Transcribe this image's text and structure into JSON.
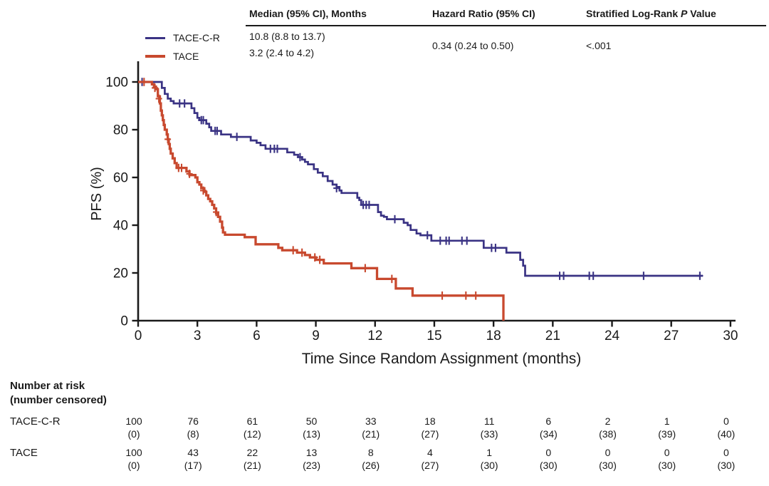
{
  "figure": {
    "stats_header": {
      "median_label": "Median (95% CI), Months",
      "hr_label": "Hazard Ratio (95% CI)",
      "logrank_prefix": "Stratified Log-Rank",
      "logrank_italic": "P",
      "logrank_suffix": "Value",
      "median_tace_c_r": "10.8 (8.8 to 13.7)",
      "median_tace": "3.2 (2.4 to 4.2)",
      "hazard_ratio": "0.34 (0.24 to 0.50)",
      "p_value": "<.001"
    },
    "legend": [
      {
        "label": "TACE-C-R",
        "color": "#3a3384"
      },
      {
        "label": "TACE",
        "color": "#c8492e"
      }
    ],
    "y_axis_label": "PFS (%)",
    "x_axis_label": "Time Since Random Assignment (months)",
    "ink_color": "#1a1a1a"
  },
  "chart_data": {
    "type": "line",
    "subtype": "kaplan-meier-step",
    "xlabel": "Time Since Random Assignment (months)",
    "ylabel": "PFS (%)",
    "xlim": [
      0,
      30
    ],
    "ylim": [
      0,
      100
    ],
    "x_ticks": [
      0,
      3,
      6,
      9,
      12,
      15,
      18,
      21,
      24,
      27,
      30
    ],
    "y_ticks": [
      0,
      20,
      40,
      60,
      80,
      100
    ],
    "grid": false,
    "legend_position": "top-left",
    "hazard_ratio_95ci": "0.34 (0.24 to 0.50)",
    "stratified_logrank_p": "<.001",
    "series": [
      {
        "name": "TACE-C-R",
        "color": "#3a3384",
        "median_95ci_months": "10.8 (8.8 to 13.7)",
        "steps": [
          [
            0,
            100
          ],
          [
            1.1,
            100
          ],
          [
            1.2,
            97.5
          ],
          [
            1.35,
            95
          ],
          [
            1.5,
            93
          ],
          [
            1.65,
            92
          ],
          [
            1.8,
            91
          ],
          [
            2.55,
            91
          ],
          [
            2.7,
            89
          ],
          [
            2.85,
            87
          ],
          [
            3.0,
            85
          ],
          [
            3.1,
            84
          ],
          [
            3.35,
            84
          ],
          [
            3.45,
            82.5
          ],
          [
            3.6,
            81
          ],
          [
            3.7,
            79.5
          ],
          [
            4.1,
            79.5
          ],
          [
            4.2,
            78
          ],
          [
            4.6,
            78
          ],
          [
            4.7,
            77
          ],
          [
            5.6,
            77
          ],
          [
            5.7,
            75.5
          ],
          [
            6.0,
            74.5
          ],
          [
            6.2,
            73.5
          ],
          [
            6.45,
            72
          ],
          [
            7.4,
            72
          ],
          [
            7.55,
            70.5
          ],
          [
            7.9,
            69.5
          ],
          [
            8.1,
            68.5
          ],
          [
            8.3,
            67.5
          ],
          [
            8.45,
            66.5
          ],
          [
            8.6,
            65.5
          ],
          [
            8.9,
            63.5
          ],
          [
            9.1,
            62
          ],
          [
            9.35,
            60.5
          ],
          [
            9.6,
            58.5
          ],
          [
            9.85,
            57
          ],
          [
            10.05,
            56
          ],
          [
            10.2,
            54.5
          ],
          [
            10.3,
            53.5
          ],
          [
            11.0,
            53.5
          ],
          [
            11.1,
            51.5
          ],
          [
            11.2,
            50.5
          ],
          [
            11.3,
            48.5
          ],
          [
            12.05,
            48.5
          ],
          [
            12.15,
            45.5
          ],
          [
            12.3,
            44
          ],
          [
            12.45,
            43.5
          ],
          [
            12.6,
            42.5
          ],
          [
            13.45,
            41
          ],
          [
            13.65,
            40
          ],
          [
            13.8,
            38
          ],
          [
            14.1,
            36.5
          ],
          [
            14.3,
            35.8
          ],
          [
            14.75,
            35.8
          ],
          [
            14.85,
            33.5
          ],
          [
            17.4,
            33.5
          ],
          [
            17.5,
            30.5
          ],
          [
            18.55,
            30.5
          ],
          [
            18.65,
            28.5
          ],
          [
            19.25,
            28.5
          ],
          [
            19.35,
            25.5
          ],
          [
            19.5,
            23
          ],
          [
            19.6,
            18.8
          ],
          [
            28.6,
            18.8
          ]
        ],
        "censors": [
          [
            0.2,
            100
          ],
          [
            2.1,
            91
          ],
          [
            2.35,
            91
          ],
          [
            3.2,
            84
          ],
          [
            3.3,
            84
          ],
          [
            3.9,
            79.5
          ],
          [
            4.0,
            79.5
          ],
          [
            5.0,
            77
          ],
          [
            6.7,
            72
          ],
          [
            6.9,
            72
          ],
          [
            7.05,
            72
          ],
          [
            8.2,
            68.5
          ],
          [
            10.05,
            55.5
          ],
          [
            11.4,
            48.5
          ],
          [
            11.55,
            48.5
          ],
          [
            11.7,
            48.5
          ],
          [
            13.0,
            42.5
          ],
          [
            14.65,
            35.8
          ],
          [
            15.3,
            33.5
          ],
          [
            15.6,
            33.5
          ],
          [
            15.75,
            33.5
          ],
          [
            16.4,
            33.5
          ],
          [
            16.65,
            33.5
          ],
          [
            17.9,
            30.5
          ],
          [
            18.1,
            30.5
          ],
          [
            21.35,
            18.8
          ],
          [
            21.55,
            18.8
          ],
          [
            22.85,
            18.8
          ],
          [
            23.05,
            18.8
          ],
          [
            25.6,
            18.8
          ],
          [
            28.45,
            18.8
          ]
        ]
      },
      {
        "name": "TACE",
        "color": "#c8492e",
        "median_95ci_months": "3.2 (2.4 to 4.2)",
        "steps": [
          [
            0,
            100
          ],
          [
            0.6,
            100
          ],
          [
            0.7,
            99
          ],
          [
            0.8,
            98
          ],
          [
            0.9,
            97
          ],
          [
            1.0,
            94
          ],
          [
            1.1,
            91
          ],
          [
            1.15,
            88
          ],
          [
            1.2,
            86
          ],
          [
            1.25,
            84
          ],
          [
            1.3,
            82
          ],
          [
            1.35,
            80
          ],
          [
            1.45,
            78
          ],
          [
            1.5,
            76
          ],
          [
            1.55,
            74
          ],
          [
            1.6,
            72
          ],
          [
            1.65,
            70
          ],
          [
            1.75,
            68
          ],
          [
            1.85,
            66
          ],
          [
            1.95,
            64
          ],
          [
            2.35,
            64
          ],
          [
            2.45,
            62.5
          ],
          [
            2.6,
            61
          ],
          [
            2.9,
            60
          ],
          [
            3.0,
            58
          ],
          [
            3.1,
            57
          ],
          [
            3.2,
            55.5
          ],
          [
            3.35,
            54
          ],
          [
            3.45,
            52.5
          ],
          [
            3.55,
            51
          ],
          [
            3.65,
            50
          ],
          [
            3.75,
            48.5
          ],
          [
            3.85,
            47
          ],
          [
            3.95,
            45
          ],
          [
            4.05,
            43.5
          ],
          [
            4.15,
            41.5
          ],
          [
            4.25,
            39
          ],
          [
            4.3,
            37
          ],
          [
            4.4,
            36
          ],
          [
            5.3,
            36
          ],
          [
            5.4,
            35
          ],
          [
            5.85,
            35
          ],
          [
            5.95,
            32
          ],
          [
            7.0,
            32
          ],
          [
            7.1,
            30.5
          ],
          [
            7.3,
            29.5
          ],
          [
            8.05,
            28.5
          ],
          [
            8.45,
            27.5
          ],
          [
            8.7,
            26.5
          ],
          [
            9.0,
            25.5
          ],
          [
            9.4,
            24
          ],
          [
            10.7,
            24
          ],
          [
            10.8,
            22
          ],
          [
            12.0,
            22
          ],
          [
            12.1,
            17.5
          ],
          [
            12.95,
            17.5
          ],
          [
            13.05,
            13.5
          ],
          [
            13.8,
            13.5
          ],
          [
            13.9,
            10.5
          ],
          [
            18.5,
            10.5
          ],
          [
            18.5,
            0
          ]
        ],
        "censors": [
          [
            0.3,
            100
          ],
          [
            0.85,
            97.5
          ],
          [
            1.05,
            93
          ],
          [
            1.5,
            76
          ],
          [
            2.05,
            64
          ],
          [
            2.2,
            64
          ],
          [
            2.6,
            61.5
          ],
          [
            3.3,
            54.5
          ],
          [
            3.95,
            45.5
          ],
          [
            7.85,
            29.5
          ],
          [
            8.3,
            28.5
          ],
          [
            8.95,
            26.5
          ],
          [
            9.2,
            25.5
          ],
          [
            11.5,
            22
          ],
          [
            12.85,
            17.5
          ],
          [
            15.4,
            10.5
          ],
          [
            16.6,
            10.5
          ],
          [
            17.1,
            10.5
          ]
        ]
      }
    ]
  },
  "risk_table": {
    "header_line1": "Number at risk",
    "header_line2": "(number censored)",
    "times": [
      0,
      3,
      6,
      9,
      12,
      15,
      18,
      21,
      24,
      27,
      30
    ],
    "rows": [
      {
        "label": "TACE-C-R",
        "at_risk": [
          "100",
          "76",
          "61",
          "50",
          "33",
          "18",
          "11",
          "6",
          "2",
          "1",
          "0"
        ],
        "censored": [
          "(0)",
          "(8)",
          "(12)",
          "(13)",
          "(21)",
          "(27)",
          "(33)",
          "(34)",
          "(38)",
          "(39)",
          "(40)"
        ]
      },
      {
        "label": "TACE",
        "at_risk": [
          "100",
          "43",
          "22",
          "13",
          "8",
          "4",
          "1",
          "0",
          "0",
          "0",
          "0"
        ],
        "censored": [
          "(0)",
          "(17)",
          "(21)",
          "(23)",
          "(26)",
          "(27)",
          "(30)",
          "(30)",
          "(30)",
          "(30)",
          "(30)"
        ]
      }
    ]
  }
}
